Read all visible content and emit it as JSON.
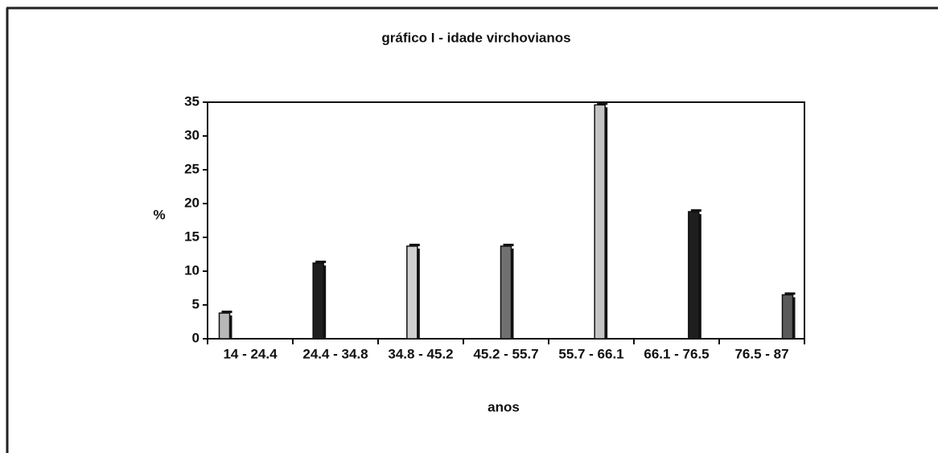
{
  "chart_data": {
    "type": "bar",
    "title": "gráfico I - idade virchovianos",
    "xlabel": "anos",
    "ylabel": "%",
    "categories": [
      "14 - 24.4",
      "24.4 - 34.8",
      "34.8 - 45.2",
      "45.2 - 55.7",
      "55.7 - 66.1",
      "66.1 - 76.5",
      "76.5 - 87"
    ],
    "values": [
      3.8,
      11.2,
      13.7,
      13.7,
      34.6,
      18.8,
      6.5
    ],
    "colors": [
      "#b8b8b8",
      "#1e1e1e",
      "#d0d0d0",
      "#707070",
      "#c4c4c4",
      "#1e1e1e",
      "#5a5a5a"
    ],
    "ylim": [
      0,
      35
    ],
    "yticks": [
      0,
      5,
      10,
      15,
      20,
      25,
      30,
      35
    ]
  }
}
